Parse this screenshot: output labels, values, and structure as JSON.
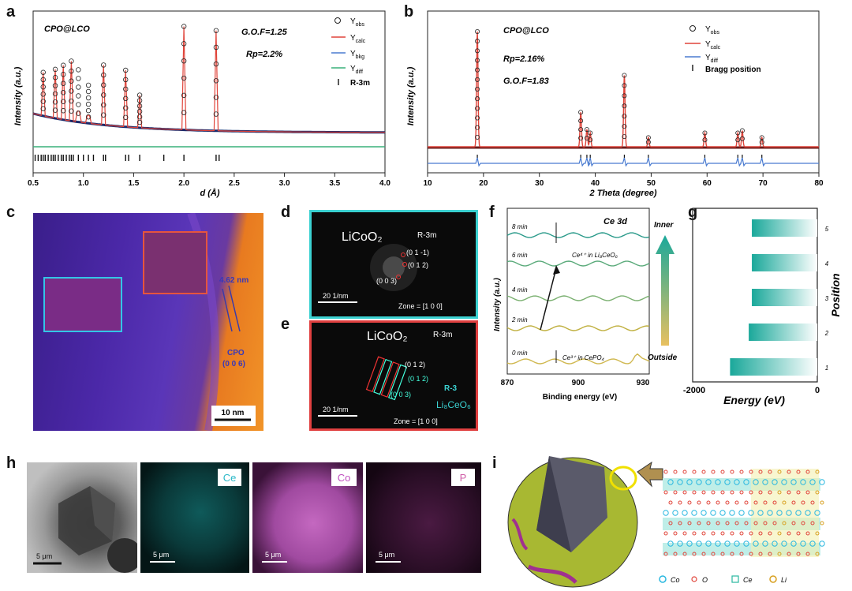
{
  "panels": {
    "a": {
      "letter": "a",
      "sample": "CPO@LCO",
      "gof": "G.O.F=1.25",
      "rp": "Rp=2.2%",
      "legend": [
        "Y",
        "Y",
        "Y",
        "Y",
        "R-3m"
      ],
      "legend_sub": [
        "obs",
        "calc",
        "bkg",
        "diff"
      ],
      "ylabel": "Intensity (a.u.)",
      "xlabel": "d (Å)",
      "xticks": [
        "0.5",
        "1.0",
        "1.5",
        "2.0",
        "2.5",
        "3.0",
        "3.5",
        "4.0"
      ]
    },
    "b": {
      "letter": "b",
      "sample": "CPO@LCO",
      "rp": "Rp=2.16%",
      "gof": "G.O.F=1.83",
      "legend": [
        "Y",
        "Y",
        "Y",
        "Bragg position"
      ],
      "legend_sub": [
        "obs",
        "calc",
        "diff"
      ],
      "ylabel": "Intensity (a.u.)",
      "xlabel": "2 Theta (degree)",
      "xticks": [
        "10",
        "20",
        "30",
        "40",
        "50",
        "60",
        "70",
        "80"
      ]
    },
    "c": {
      "letter": "c",
      "spacing": "4.62 nm",
      "phase": "CPO",
      "plane": "(0 0 6)",
      "scale": "10 nm"
    },
    "d": {
      "letter": "d",
      "compound": "LiCoO₂",
      "group": "R-3m",
      "p1": "(0 1 -1)",
      "p2": "(0 1 2)",
      "p3": "(0 0 3)",
      "scale": "20 1/nm",
      "zone": "Zone = [1 0 0]"
    },
    "e": {
      "letter": "e",
      "compound": "LiCoO₂",
      "group": "R-3m",
      "p1": "(0 1 2)",
      "p2": "(0 1 2)",
      "p3": "(0 0 3)",
      "group2": "R-3",
      "compound2": "Li₈CeO₆",
      "scale": "20 1/nm",
      "zone": "Zone = [1 0 0]"
    },
    "f": {
      "letter": "f",
      "title": "Ce 3d",
      "times": [
        "8 min",
        "6 min",
        "4 min",
        "2 min",
        "0 min"
      ],
      "ce4": "Ce⁴⁺ in Li₈CeO₆",
      "ce3": "Ce³⁺ in CePO₄",
      "inner": "Inner",
      "outside": "Outside",
      "ylabel": "Intensity (a.u.)",
      "xlabel": "Binding energy (eV)",
      "xticks": [
        "870",
        "900",
        "930"
      ]
    },
    "g": {
      "letter": "g",
      "positions": [
        "5",
        "4",
        "3",
        "2",
        "1"
      ],
      "xticks": [
        "-2000",
        "0"
      ],
      "xlabel": "Energy (eV)",
      "ylabel": "Position"
    },
    "h": {
      "letter": "h",
      "scale": "5 μm",
      "elements": [
        "Ce",
        "Co",
        "P"
      ]
    },
    "i": {
      "letter": "i",
      "legend": [
        "Co",
        "O",
        "Ce",
        "Li"
      ]
    }
  },
  "chart_data": [
    {
      "type": "line",
      "title": "CPO@LCO",
      "xlabel": "d (Å)",
      "ylabel": "Intensity (a.u.)",
      "xlim": [
        0.5,
        4.0
      ],
      "peaks_x": [
        0.6,
        0.72,
        0.8,
        0.88,
        0.95,
        1.05,
        1.2,
        1.42,
        1.56,
        2.0,
        2.32
      ],
      "peaks_y": [
        0.4,
        0.45,
        0.5,
        0.55,
        0.48,
        0.35,
        0.55,
        0.52,
        0.3,
        0.95,
        0.92
      ],
      "series": [
        {
          "name": "Yobs"
        },
        {
          "name": "Ycalc"
        },
        {
          "name": "Ybkg"
        },
        {
          "name": "Ydiff"
        },
        {
          "name": "R-3m"
        }
      ]
    },
    {
      "type": "line",
      "title": "CPO@LCO",
      "xlabel": "2 Theta (degree)",
      "ylabel": "Intensity (a.u.)",
      "xlim": [
        10,
        80
      ],
      "peaks_x": [
        18.9,
        37.4,
        38.5,
        39.1,
        45.2,
        49.5,
        59.6,
        65.5,
        66.3,
        69.8
      ],
      "peaks_y": [
        1.0,
        0.3,
        0.15,
        0.12,
        0.62,
        0.08,
        0.12,
        0.12,
        0.14,
        0.08
      ],
      "series": [
        {
          "name": "Yobs"
        },
        {
          "name": "Ycalc"
        },
        {
          "name": "Ydiff"
        },
        {
          "name": "Bragg position"
        }
      ]
    },
    {
      "type": "bar",
      "title": "",
      "xlabel": "Energy (eV)",
      "ylabel": "Position",
      "categories": [
        "5",
        "4",
        "3",
        "2",
        "1"
      ],
      "values": [
        -1050,
        -1050,
        -1050,
        -1100,
        -1400
      ],
      "xlim": [
        -2000,
        0
      ]
    }
  ]
}
